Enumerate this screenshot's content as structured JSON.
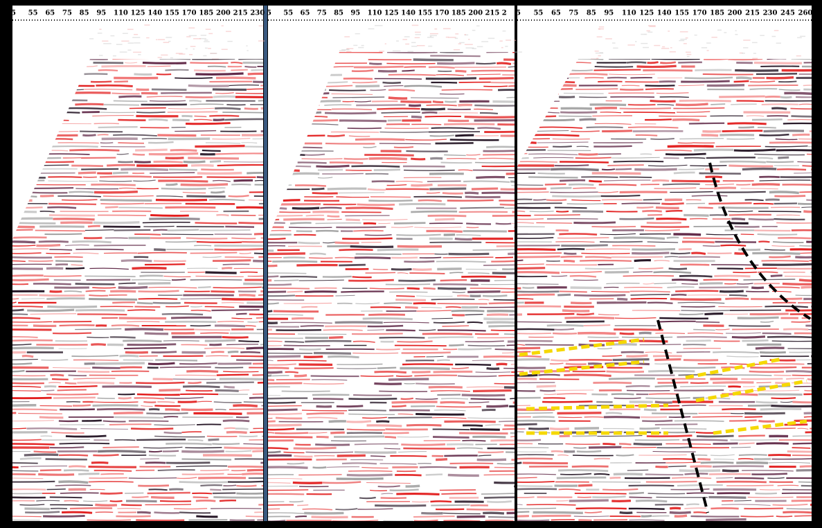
{
  "panels": [
    {
      "ticks": [
        "5",
        "55",
        "65",
        "75",
        "85",
        "95",
        "110",
        "125",
        "140",
        "155",
        "170",
        "185",
        "200",
        "215",
        "230"
      ]
    },
    {
      "ticks": [
        "5",
        "55",
        "65",
        "75",
        "85",
        "95",
        "110",
        "125",
        "140",
        "155",
        "170",
        "185",
        "200",
        "215",
        "2"
      ]
    },
    {
      "ticks": [
        "5",
        "55",
        "65",
        "75",
        "85",
        "95",
        "110",
        "125",
        "140",
        "155",
        "170",
        "185",
        "200",
        "215",
        "230",
        "245",
        "260"
      ]
    }
  ]
}
